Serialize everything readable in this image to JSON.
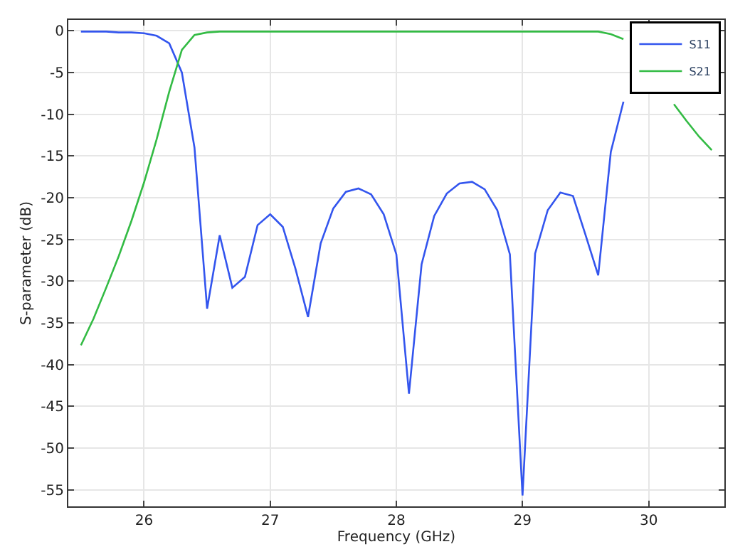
{
  "chart_data": {
    "type": "line",
    "xlabel": "Frequency (GHz)",
    "ylabel": "S-parameter (dB)",
    "x": [
      25.5,
      25.6,
      25.7,
      25.8,
      25.9,
      26.0,
      26.1,
      26.2,
      26.3,
      26.4,
      26.5,
      26.6,
      26.7,
      26.8,
      26.9,
      27.0,
      27.1,
      27.2,
      27.3,
      27.4,
      27.5,
      27.6,
      27.7,
      27.8,
      27.9,
      28.0,
      28.1,
      28.2,
      28.3,
      28.4,
      28.5,
      28.6,
      28.7,
      28.8,
      28.9,
      29.0,
      29.1,
      29.2,
      29.3,
      29.4,
      29.5,
      29.6,
      29.7,
      29.8,
      29.9,
      30.0,
      30.1,
      30.2,
      30.3,
      30.4,
      30.5
    ],
    "series": [
      {
        "name": "S11",
        "color": "#3355ee",
        "values": [
          -0.1,
          -0.1,
          -0.1,
          -0.2,
          -0.2,
          -0.3,
          -0.6,
          -1.5,
          -5,
          -14,
          -33.3,
          -24.5,
          -30.8,
          -29.5,
          -23.3,
          -22,
          -23.5,
          -28.5,
          -34.3,
          -25.5,
          -21.3,
          -19.3,
          -18.9,
          -19.6,
          -22,
          -26.8,
          -43.5,
          -28,
          -22.2,
          -19.5,
          -18.3,
          -18.1,
          -19,
          -21.5,
          -26.8,
          -55.7,
          -26.7,
          -21.5,
          -19.4,
          -19.8,
          -24.5,
          -29.3,
          -14.5,
          -8.5,
          null,
          null,
          null,
          null,
          null,
          null,
          null
        ]
      },
      {
        "name": "S21",
        "color": "#33bb44",
        "values": [
          -37.7,
          -34.5,
          -30.8,
          -27,
          -22.8,
          -18.2,
          -13,
          -7.3,
          -2.3,
          -0.5,
          -0.2,
          -0.1,
          -0.1,
          -0.1,
          -0.1,
          -0.1,
          -0.1,
          -0.1,
          -0.1,
          -0.1,
          -0.1,
          -0.1,
          -0.1,
          -0.1,
          -0.1,
          -0.1,
          -0.1,
          -0.1,
          -0.1,
          -0.1,
          -0.1,
          -0.1,
          -0.1,
          -0.1,
          -0.1,
          -0.1,
          -0.1,
          -0.1,
          -0.1,
          -0.1,
          -0.1,
          -0.1,
          -0.4,
          -1,
          null,
          null,
          null,
          -8.8,
          -10.8,
          -12.7,
          -14.3
        ]
      }
    ],
    "xlim": [
      25.4,
      30.6
    ],
    "xticks": [
      26,
      27,
      28,
      29,
      30
    ],
    "ylim": [
      -57,
      1.3
    ],
    "yticks": [
      0,
      -5,
      -10,
      -15,
      -20,
      -25,
      -30,
      -35,
      -40,
      -45,
      -50,
      -55
    ],
    "grid": true,
    "legend": "top right",
    "marker": "none",
    "line_style": "solid"
  }
}
